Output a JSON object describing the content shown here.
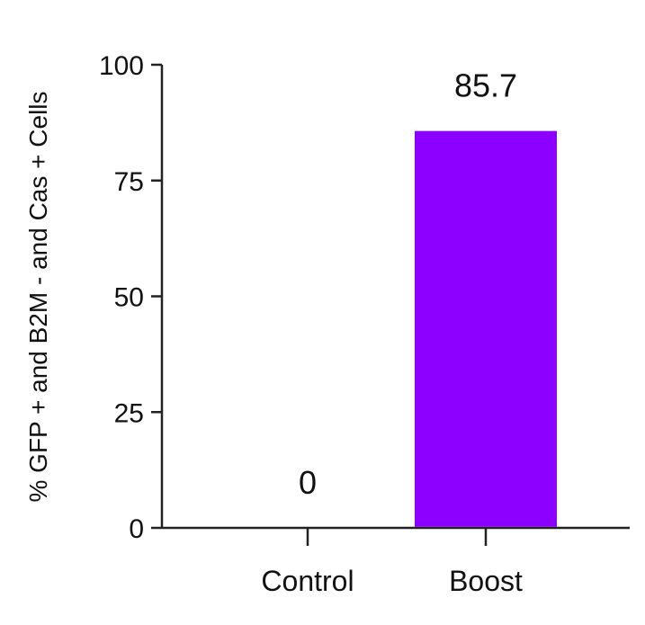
{
  "chart_data": {
    "type": "bar",
    "categories": [
      "Control",
      "Boost"
    ],
    "values": [
      0,
      85.7
    ],
    "data_labels": [
      "0",
      "85.7"
    ],
    "ylabel": "% GFP + and B2M - and Cas + Cells",
    "xlabel": "",
    "ylim": [
      0,
      100
    ],
    "yticks": [
      0,
      25,
      50,
      75,
      100
    ],
    "ytick_labels": [
      "0",
      "25",
      "50",
      "75",
      "100"
    ],
    "bar_color": "#8B00FF",
    "grid": false,
    "legend": "none"
  }
}
